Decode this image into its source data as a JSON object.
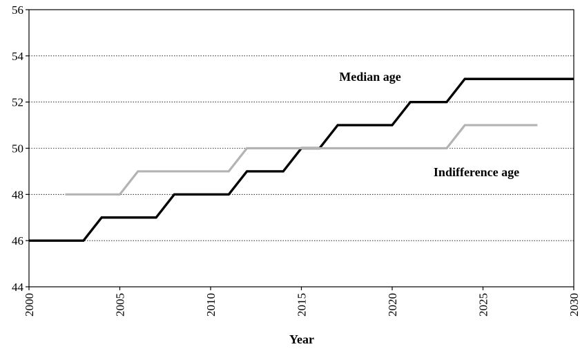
{
  "chart_data": {
    "type": "line",
    "title": "",
    "xlabel": "Year",
    "ylabel": "",
    "xlim": [
      2000,
      2030
    ],
    "ylim": [
      44,
      56
    ],
    "x_ticks": [
      2000,
      2005,
      2010,
      2015,
      2020,
      2025,
      2030
    ],
    "y_ticks": [
      44,
      46,
      48,
      50,
      52,
      54,
      56
    ],
    "grid": "horizontal-dotted",
    "legend": "none",
    "series": [
      {
        "name": "Median age",
        "color": "#000000",
        "step": true,
        "x": [
          2000,
          2001,
          2002,
          2003,
          2004,
          2005,
          2006,
          2007,
          2008,
          2009,
          2010,
          2011,
          2012,
          2013,
          2014,
          2015,
          2016,
          2017,
          2018,
          2019,
          2020,
          2021,
          2022,
          2023,
          2024,
          2025,
          2026,
          2027,
          2028,
          2029,
          2030
        ],
        "values": [
          46,
          46,
          46,
          46,
          47,
          47,
          47,
          47,
          48,
          48,
          48,
          48,
          49,
          49,
          49,
          50,
          50,
          51,
          51,
          51,
          51,
          52,
          52,
          52,
          53,
          53,
          53,
          53,
          53,
          53,
          53
        ]
      },
      {
        "name": "Indifference age",
        "color": "#b3b3b3",
        "step": true,
        "x": [
          2002,
          2003,
          2004,
          2005,
          2006,
          2007,
          2008,
          2009,
          2010,
          2011,
          2012,
          2013,
          2014,
          2015,
          2016,
          2017,
          2018,
          2019,
          2020,
          2021,
          2022,
          2023,
          2024,
          2025,
          2026,
          2027,
          2028
        ],
        "values": [
          48,
          48,
          48,
          48,
          49,
          49,
          49,
          49,
          49,
          49,
          50,
          50,
          50,
          50,
          50,
          50,
          50,
          50,
          50,
          50,
          50,
          50,
          51,
          51,
          51,
          51,
          51
        ]
      }
    ]
  }
}
